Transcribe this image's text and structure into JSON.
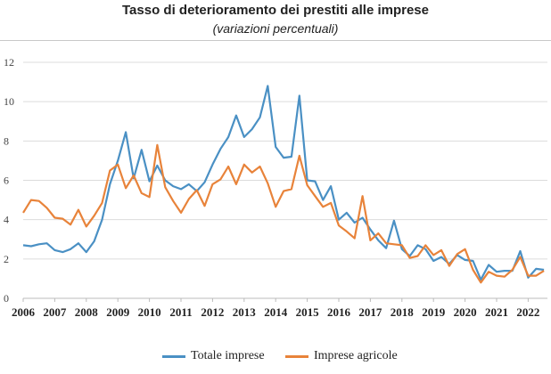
{
  "chart_data": {
    "type": "line",
    "title": "Tasso di deterioramento dei prestiti alle imprese",
    "subtitle": "(variazioni percentuali)",
    "xlabel": "",
    "ylabel": "",
    "x_ticks": [
      "2006",
      "2007",
      "2008",
      "2009",
      "2010",
      "2011",
      "2012",
      "2013",
      "2014",
      "2015",
      "2016",
      "2017",
      "2018",
      "2019",
      "2020",
      "2021",
      "2022"
    ],
    "x_frequency": "quarterly",
    "x_start": "2006",
    "ylim": [
      0,
      12
    ],
    "y_ticks": [
      0,
      2,
      4,
      6,
      8,
      10,
      12
    ],
    "grid": "horizontal",
    "legend": "bottom",
    "series": [
      {
        "name": "Totale imprese",
        "color": "#4a90c4",
        "values": [
          2.7,
          2.65,
          2.75,
          2.8,
          2.45,
          2.35,
          2.5,
          2.8,
          2.35,
          2.9,
          4.0,
          5.8,
          7.0,
          8.45,
          6.1,
          7.55,
          5.95,
          6.75,
          6.0,
          5.7,
          5.55,
          5.8,
          5.45,
          5.9,
          6.8,
          7.6,
          8.2,
          9.3,
          8.2,
          8.6,
          9.2,
          10.8,
          7.7,
          7.15,
          7.2,
          10.3,
          6.0,
          5.95,
          5.0,
          5.7,
          4.0,
          4.35,
          3.85,
          4.1,
          3.5,
          2.95,
          2.55,
          3.95,
          2.5,
          2.15,
          2.7,
          2.5,
          1.9,
          2.1,
          1.75,
          2.2,
          1.95,
          1.9,
          0.95,
          1.7,
          1.35,
          1.4,
          1.4,
          2.4,
          1.05,
          1.5,
          1.45
        ]
      },
      {
        "name": "Imprese agricole",
        "color": "#e8833a",
        "values": [
          4.35,
          5.0,
          4.95,
          4.6,
          4.1,
          4.05,
          3.75,
          4.5,
          3.65,
          4.2,
          4.85,
          6.5,
          6.8,
          5.6,
          6.25,
          5.35,
          5.15,
          7.8,
          5.65,
          4.95,
          4.35,
          5.05,
          5.5,
          4.7,
          5.8,
          6.05,
          6.7,
          5.8,
          6.8,
          6.4,
          6.7,
          5.85,
          4.65,
          5.45,
          5.55,
          7.25,
          5.75,
          5.2,
          4.65,
          4.85,
          3.7,
          3.4,
          3.05,
          5.2,
          2.95,
          3.3,
          2.8,
          2.75,
          2.7,
          2.05,
          2.15,
          2.7,
          2.2,
          2.45,
          1.65,
          2.25,
          2.5,
          1.45,
          0.8,
          1.35,
          1.15,
          1.1,
          1.45,
          2.1,
          1.15,
          1.15,
          1.4
        ]
      }
    ]
  }
}
